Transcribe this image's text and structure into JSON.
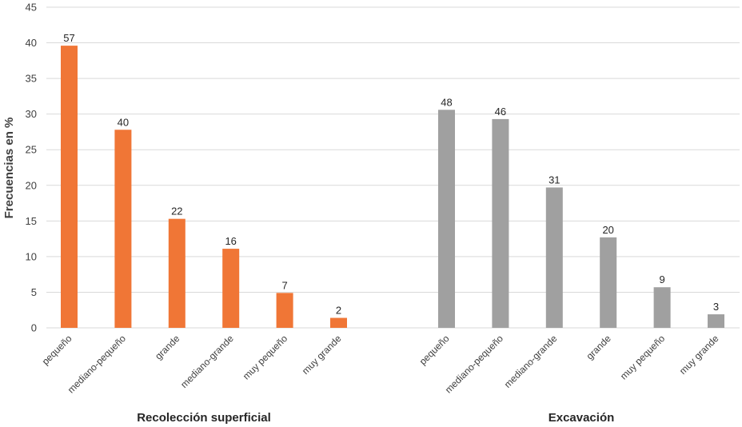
{
  "chart_data": {
    "type": "bar",
    "ylabel": "Frecuencias en %",
    "ylim": [
      0,
      45
    ],
    "yticks": [
      0,
      5,
      10,
      15,
      20,
      25,
      30,
      35,
      40,
      45
    ],
    "grid": true,
    "groups": [
      {
        "name": "Recolección superficial",
        "color": "#f07636",
        "categories": [
          "pequeño",
          "mediano-pequeño",
          "grande",
          "mediano-grande",
          "muy pequeño",
          "muy grande"
        ],
        "values": [
          39.6,
          27.8,
          15.3,
          11.1,
          4.9,
          1.4
        ],
        "labels": [
          "57",
          "40",
          "22",
          "16",
          "7",
          "2"
        ]
      },
      {
        "name": "Excavación",
        "color": "#a0a0a0",
        "categories": [
          "pequeño",
          "mediano-pequeño",
          "mediano-grande",
          "grande",
          "muy pequeño",
          "muy grande"
        ],
        "values": [
          30.6,
          29.3,
          19.7,
          12.7,
          5.7,
          1.9
        ],
        "labels": [
          "48",
          "46",
          "31",
          "20",
          "9",
          "3"
        ]
      }
    ]
  }
}
